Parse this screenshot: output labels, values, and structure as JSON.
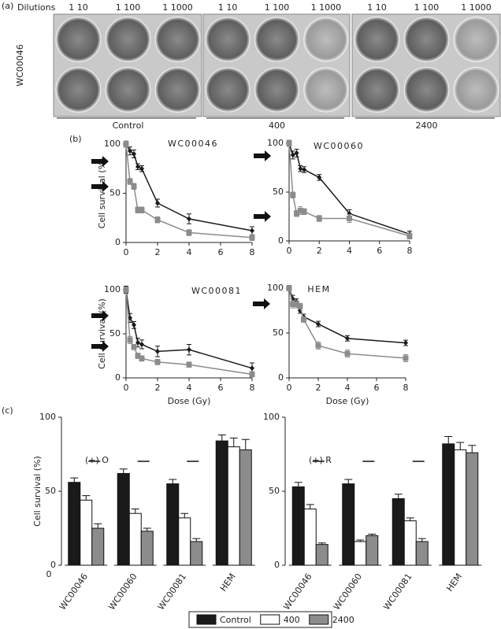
{
  "panel_a": {
    "panel": "(a)",
    "dilutions_label": "Dilutions",
    "dilutions": [
      [
        "1 10",
        "1 100",
        "1 1000"
      ],
      [
        "1 10",
        "1 100",
        "1 1000"
      ],
      [
        "1 10",
        "1 100",
        "1 1000"
      ]
    ],
    "sample": "WC00046",
    "groups": [
      "Control",
      "400",
      "2400"
    ]
  },
  "chart_data": [
    {
      "type": "line",
      "panel": "(b)",
      "title": "WC00046",
      "ylabel": "Cell survival (%)",
      "x": [
        0,
        0.25,
        0.5,
        0.75,
        1,
        2,
        4,
        8
      ],
      "xlim": [
        0,
        8
      ],
      "xticks": [
        0,
        2,
        4,
        6,
        8
      ],
      "ylim": [
        0,
        100
      ],
      "yticks": [
        0,
        50,
        100
      ],
      "series": [
        {
          "color": "#1a1a1a",
          "marker": "diamond",
          "values": [
            100,
            93,
            90,
            77,
            75,
            40,
            24,
            12
          ],
          "errors": [
            3,
            4,
            4,
            3,
            3,
            4,
            5,
            4
          ]
        },
        {
          "color": "#8c8c8c",
          "marker": "square",
          "values": [
            100,
            62,
            57,
            33,
            33,
            23,
            10,
            5
          ],
          "errors": [
            3,
            3,
            3,
            3,
            3,
            3,
            3,
            3
          ]
        }
      ]
    },
    {
      "type": "line",
      "title": "WC00060",
      "x": [
        0,
        0.25,
        0.5,
        0.75,
        1,
        2,
        4,
        8
      ],
      "xlim": [
        0,
        8
      ],
      "xticks": [
        0,
        2,
        4,
        6,
        8
      ],
      "ylim": [
        0,
        100
      ],
      "yticks": [
        0,
        50,
        100
      ],
      "series": [
        {
          "color": "#1a1a1a",
          "marker": "diamond",
          "values": [
            100,
            88,
            90,
            74,
            73,
            65,
            28,
            7
          ],
          "errors": [
            3,
            4,
            4,
            3,
            3,
            3,
            4,
            3
          ]
        },
        {
          "color": "#8c8c8c",
          "marker": "square",
          "values": [
            100,
            47,
            28,
            31,
            30,
            23,
            23,
            5
          ],
          "errors": [
            3,
            3,
            3,
            4,
            3,
            3,
            4,
            3
          ]
        }
      ]
    },
    {
      "type": "line",
      "title": "WC00081",
      "ylabel": "Cell survival (%)",
      "xlabel": "Dose (Gy)",
      "x": [
        0,
        0.25,
        0.5,
        0.75,
        1,
        2,
        4,
        8
      ],
      "xlim": [
        0,
        8
      ],
      "xticks": [
        0,
        2,
        4,
        6,
        8
      ],
      "ylim": [
        0,
        100
      ],
      "yticks": [
        0,
        50,
        100
      ],
      "series": [
        {
          "color": "#1a1a1a",
          "marker": "diamond",
          "values": [
            100,
            68,
            60,
            40,
            38,
            30,
            32,
            11
          ],
          "errors": [
            4,
            5,
            4,
            5,
            5,
            6,
            6,
            6
          ]
        },
        {
          "color": "#8c8c8c",
          "marker": "square",
          "values": [
            100,
            43,
            35,
            25,
            22,
            18,
            15,
            4
          ],
          "errors": [
            3,
            4,
            3,
            3,
            3,
            3,
            3,
            3
          ]
        }
      ]
    },
    {
      "type": "line",
      "title": "HEM",
      "xlabel": "Dose (Gy)",
      "x": [
        0,
        0.25,
        0.5,
        0.75,
        1,
        2,
        4,
        8
      ],
      "xlim": [
        0,
        8
      ],
      "xticks": [
        0,
        2,
        4,
        6,
        8
      ],
      "ylim": [
        0,
        100
      ],
      "yticks": [
        0,
        50,
        100
      ],
      "series": [
        {
          "color": "#1a1a1a",
          "marker": "diamond",
          "values": [
            100,
            88,
            85,
            75,
            68,
            60,
            44,
            39
          ],
          "errors": [
            3,
            4,
            3,
            3,
            3,
            3,
            3,
            3
          ]
        },
        {
          "color": "#8c8c8c",
          "marker": "square",
          "values": [
            100,
            82,
            82,
            80,
            65,
            36,
            27,
            22
          ],
          "errors": [
            3,
            4,
            4,
            3,
            3,
            4,
            4,
            4
          ]
        }
      ]
    },
    {
      "type": "bar",
      "panel": "(c)",
      "annotation": "(+) O",
      "ylabel": "Cell survival (%)",
      "origin_label": "0",
      "categories": [
        "WC00046",
        "WC00060",
        "WC00081",
        "HEM"
      ],
      "ylim": [
        0,
        100
      ],
      "yticks": [
        0,
        50,
        100
      ],
      "series": [
        {
          "name": "Control",
          "color": "#1a1a1a",
          "values": [
            56,
            62,
            55,
            84
          ],
          "errors": [
            3,
            3,
            3,
            4
          ]
        },
        {
          "name": "400",
          "color": "#ffffff",
          "values": [
            44,
            35,
            32,
            80
          ],
          "errors": [
            3,
            3,
            3,
            6
          ]
        },
        {
          "name": "2400",
          "color": "#8c8c8c",
          "values": [
            25,
            23,
            16,
            78
          ],
          "errors": [
            3,
            2,
            2,
            7
          ]
        }
      ]
    },
    {
      "type": "bar",
      "annotation": "(+) R",
      "categories": [
        "WC00046",
        "WC00060",
        "WC00081",
        "HEM"
      ],
      "ylim": [
        0,
        100
      ],
      "yticks": [
        0,
        50,
        100
      ],
      "series": [
        {
          "name": "Control",
          "color": "#1a1a1a",
          "values": [
            53,
            55,
            45,
            82
          ],
          "errors": [
            3,
            3,
            3,
            5
          ]
        },
        {
          "name": "400",
          "color": "#ffffff",
          "values": [
            38,
            16,
            30,
            78
          ],
          "errors": [
            3,
            1,
            2,
            5
          ]
        },
        {
          "name": "2400",
          "color": "#8c8c8c",
          "values": [
            14,
            20,
            16,
            76
          ],
          "errors": [
            1,
            1,
            2,
            5
          ]
        }
      ]
    }
  ]
}
